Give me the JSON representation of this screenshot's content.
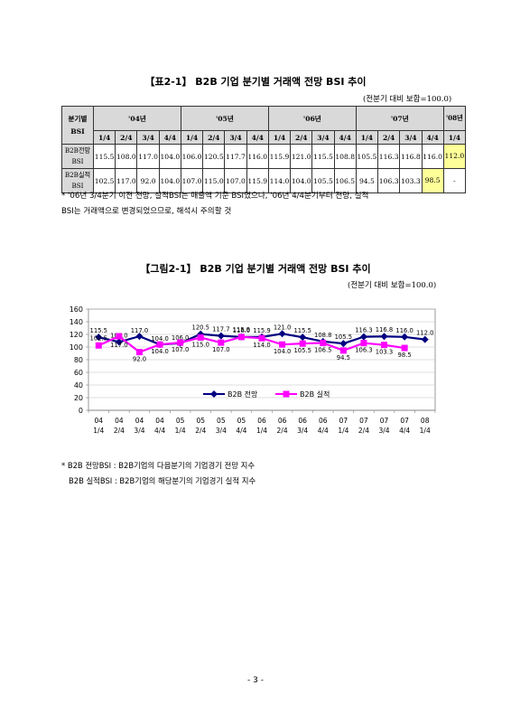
{
  "table": {
    "title": "【표2-1】 B2B 기업 분기별 거래액 전망 BSI 추이",
    "unit": "(전분기 대비 보합=100.0)",
    "row_header_top": "분기별",
    "row_header_bottom": "BSI",
    "years": [
      "'04년",
      "'05년",
      "'06년",
      "'07년",
      "'08년"
    ],
    "quarters": [
      "1/4",
      "2/4",
      "3/4",
      "4/4",
      "1/4",
      "2/4",
      "3/4",
      "4/4",
      "1/4",
      "2/4",
      "3/4",
      "4/4",
      "1/4",
      "2/4",
      "3/4",
      "4/4",
      "1/4"
    ],
    "rows": [
      {
        "label": "B2B전망 BSI",
        "values": [
          "115.5",
          "108.0",
          "117.0",
          "104.0",
          "106.0",
          "120.5",
          "117.7",
          "116.0",
          "115.9",
          "121.0",
          "115.5",
          "108.8",
          "105.5",
          "116.3",
          "116.8",
          "116.0",
          "112.0"
        ]
      },
      {
        "label": "B2B실적 BSI",
        "values": [
          "102.5",
          "117.0",
          "92.0",
          "104.0",
          "107.0",
          "115.0",
          "107.0",
          "115.9",
          "114.0",
          "104.0",
          "105.5",
          "106.5",
          "94.5",
          "106.3",
          "103.3",
          "98.5",
          "-"
        ]
      }
    ],
    "highlight_color": "#ffff99",
    "header_color": "#d9d9d9"
  },
  "table_note": [
    "* '06년 3/4분기 이전 전망, 실적BSI는 매출액 기준 BSI였으나, '06년 4/4분기부터 전망, 실적",
    "BSI는 거래액으로 변경되었으므로, 해석시 주의할 것"
  ],
  "figure": {
    "title": "【그림2-1】 B2B 기업 분기별 거래액 전망 BSI 추이",
    "unit": "(전분기 대비 보합=100.0)"
  },
  "chart_data": {
    "type": "line",
    "x_top": [
      "04",
      "04",
      "04",
      "04",
      "05",
      "05",
      "05",
      "05",
      "06",
      "06",
      "06",
      "06",
      "07",
      "07",
      "07",
      "07",
      "08"
    ],
    "x_bottom": [
      "1/4",
      "2/4",
      "3/4",
      "4/4",
      "1/4",
      "2/4",
      "3/4",
      "4/4",
      "1/4",
      "2/4",
      "3/4",
      "4/4",
      "1/4",
      "2/4",
      "3/4",
      "4/4",
      "1/4"
    ],
    "ylim": [
      0,
      160
    ],
    "yticks": [
      0,
      20,
      40,
      60,
      80,
      100,
      120,
      140,
      160
    ],
    "grid": true,
    "legend": "inside-lower-center",
    "series": [
      {
        "name": "B2B 전망",
        "color": "#000080",
        "marker": "diamond",
        "values": [
          115.5,
          108.0,
          117.0,
          104.0,
          106.0,
          120.5,
          117.7,
          116.0,
          115.9,
          121.0,
          115.5,
          108.8,
          105.5,
          116.3,
          116.8,
          116.0,
          112.0
        ],
        "labels": [
          "115.5",
          "108.0",
          "117.0",
          "104.0",
          "106.0",
          "120.5",
          "117.7",
          "116.0",
          "115.9",
          "121.0",
          "115.5",
          "108.8",
          "105.5",
          "116.3",
          "116.8",
          "116.0",
          "112.0"
        ]
      },
      {
        "name": "B2B 실적",
        "color": "#ff00ff",
        "marker": "square",
        "values": [
          102.5,
          117.0,
          92.0,
          104.0,
          107.0,
          115.0,
          107.0,
          115.9,
          114.0,
          104.0,
          105.5,
          106.5,
          94.5,
          106.3,
          103.3,
          98.5,
          null
        ],
        "labels": [
          "102.5",
          "117.0",
          "92.0",
          "104.0",
          "107.0",
          "115.0",
          "107.0",
          "115.9",
          "114.0",
          "104.0",
          "105.5",
          "106.5",
          "94.5",
          "106.3",
          "103.3",
          "98.5",
          ""
        ]
      }
    ]
  },
  "figure_note": [
    "* B2B 전망BSI : B2B기업의 다음분기의 기업경기 전망 지수",
    "B2B 실적BSI : B2B기업의 해당분기의 기업경기 실적 지수"
  ],
  "page_number": "- 3 -"
}
